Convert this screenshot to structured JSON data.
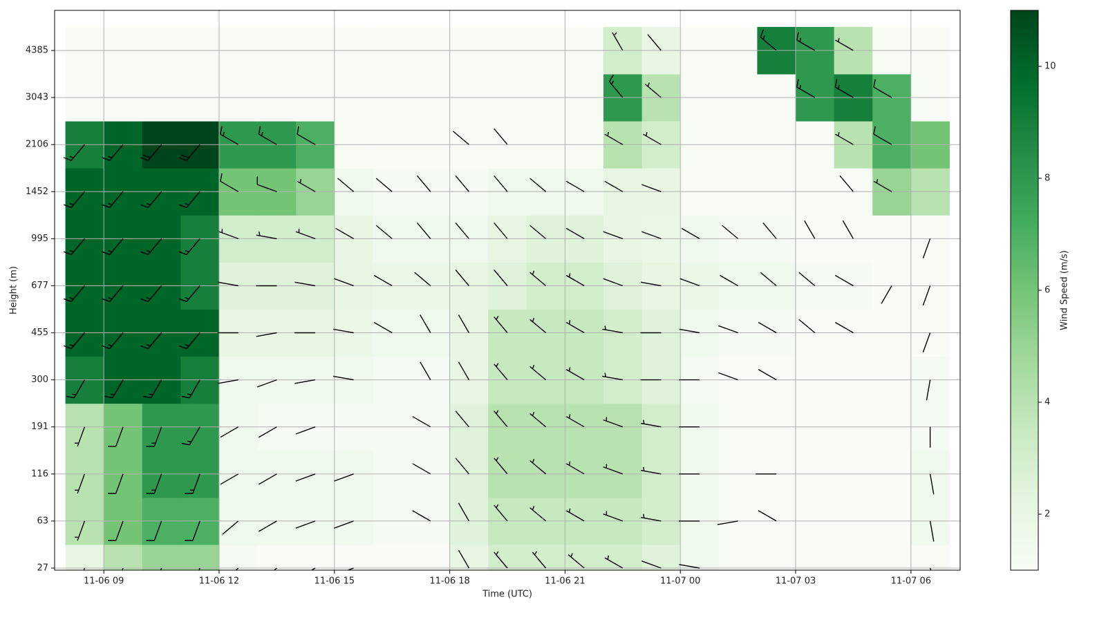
{
  "chart_data": {
    "type": "heatmap_barbs",
    "xlabel": "Time (UTC)",
    "ylabel": "Height (m)",
    "colorbar_label": "Wind Speed (m/s)",
    "x": [
      8,
      9,
      10,
      11,
      12,
      13,
      14,
      15,
      16,
      17,
      18,
      19,
      20,
      21,
      22,
      23,
      24,
      25,
      26,
      27,
      28,
      29,
      30
    ],
    "xlim": [
      7.72,
      31.28
    ],
    "xticks": [
      {
        "value": 9,
        "label": "11-06 09"
      },
      {
        "value": 12,
        "label": "11-06 12"
      },
      {
        "value": 15,
        "label": "11-06 15"
      },
      {
        "value": 18,
        "label": "11-06 18"
      },
      {
        "value": 21,
        "label": "11-06 21"
      },
      {
        "value": 24,
        "label": "11-07 00"
      },
      {
        "value": 27,
        "label": "11-07 03"
      },
      {
        "value": 30,
        "label": "11-07 06"
      }
    ],
    "heights": [
      27,
      63,
      116,
      191,
      300,
      455,
      677,
      995,
      1452,
      2106,
      3043,
      4385
    ],
    "grid": true,
    "clim": [
      1,
      11
    ],
    "cticks": [
      2,
      4,
      6,
      8,
      10
    ],
    "cmap_colors": [
      "#f7fcf5",
      "#e5f5e0",
      "#c7e9c0",
      "#a1d99b",
      "#74c476",
      "#41ab5d",
      "#238b45",
      "#006d2c",
      "#00441b"
    ],
    "barb_color": "#000000",
    "values": [
      [
        2,
        4,
        5,
        5,
        1.2,
        1,
        1,
        1,
        1,
        1,
        2,
        3,
        3,
        3,
        3,
        2.5,
        1.5,
        1,
        1,
        1,
        1,
        1,
        1
      ],
      [
        4,
        6,
        7,
        7,
        1.5,
        1.5,
        1.5,
        1.5,
        1.2,
        1.2,
        2.5,
        3.5,
        3.5,
        3.5,
        3.5,
        3,
        1.5,
        1,
        1,
        1,
        1,
        1,
        1.5
      ],
      [
        4,
        6,
        8,
        8,
        1.5,
        1.5,
        1.5,
        1.5,
        1.2,
        1.2,
        2.5,
        4,
        4,
        4,
        4,
        3,
        1.5,
        1,
        1,
        1,
        1,
        1,
        1.5
      ],
      [
        4,
        6,
        8,
        8,
        1.5,
        1.2,
        1.2,
        1.2,
        1.2,
        1.2,
        2.5,
        4,
        4,
        4,
        4,
        3,
        1.5,
        1,
        1,
        1,
        1,
        1,
        1.2
      ],
      [
        9,
        10,
        10,
        9,
        1.5,
        1.5,
        1.5,
        1.5,
        1.2,
        1.2,
        2,
        3.5,
        3.5,
        3.5,
        3,
        2.5,
        1.2,
        1,
        1,
        1,
        1,
        1,
        1.2
      ],
      [
        10,
        10,
        10,
        10,
        2,
        2,
        2,
        1.8,
        1.5,
        1.5,
        2,
        3.5,
        3.5,
        3.5,
        3,
        2.5,
        1.5,
        1.2,
        1.2,
        1,
        1,
        1,
        1
      ],
      [
        10,
        10,
        10,
        9,
        2.5,
        2.5,
        2.5,
        2,
        1.8,
        1.8,
        2,
        2.5,
        3,
        3,
        2.5,
        2,
        1.8,
        1.5,
        1.5,
        1.2,
        1.2,
        1,
        1
      ],
      [
        10,
        10,
        10,
        9,
        3,
        3,
        3,
        2,
        1.5,
        1.5,
        1.5,
        2,
        2.5,
        2.5,
        2,
        1.8,
        1.5,
        1.2,
        1.2,
        1,
        1,
        1,
        1
      ],
      [
        10,
        10,
        10,
        10,
        6,
        6,
        5,
        1.5,
        1.2,
        1.2,
        1.2,
        1.5,
        1.5,
        1.5,
        2,
        2,
        1,
        1,
        1,
        1,
        1,
        5,
        4
      ],
      [
        9,
        10,
        11,
        11,
        8,
        8,
        7,
        1,
        1,
        1,
        1,
        1,
        1,
        1,
        4,
        3,
        1,
        1,
        1,
        1,
        4,
        7,
        6
      ],
      [
        1,
        1,
        1,
        1,
        1,
        1,
        1,
        1,
        1,
        1,
        1,
        1,
        1,
        1,
        8,
        4,
        1,
        1,
        1,
        8,
        9,
        7,
        1
      ],
      [
        1,
        1,
        1,
        1,
        1,
        1,
        1,
        1,
        1,
        1,
        1,
        1,
        1,
        1,
        3,
        2,
        1,
        1,
        9,
        8,
        4,
        1,
        1
      ]
    ],
    "directions": [
      [
        200,
        200,
        200,
        200,
        230,
        230,
        240,
        250,
        null,
        null,
        330,
        320,
        320,
        310,
        300,
        290,
        280,
        null,
        null,
        null,
        null,
        null,
        160
      ],
      [
        200,
        200,
        200,
        200,
        230,
        240,
        250,
        250,
        null,
        300,
        330,
        320,
        310,
        300,
        290,
        280,
        270,
        260,
        300,
        null,
        null,
        null,
        170
      ],
      [
        200,
        200,
        200,
        200,
        240,
        240,
        250,
        250,
        null,
        300,
        320,
        320,
        310,
        300,
        290,
        280,
        270,
        null,
        270,
        null,
        null,
        null,
        170
      ],
      [
        200,
        200,
        200,
        210,
        240,
        240,
        250,
        null,
        null,
        300,
        320,
        320,
        310,
        300,
        290,
        280,
        270,
        null,
        null,
        null,
        null,
        null,
        180
      ],
      [
        210,
        210,
        210,
        210,
        260,
        250,
        260,
        280,
        null,
        330,
        330,
        320,
        310,
        300,
        280,
        270,
        270,
        290,
        300,
        null,
        null,
        null,
        190
      ],
      [
        220,
        220,
        220,
        220,
        270,
        260,
        270,
        280,
        300,
        330,
        330,
        320,
        310,
        300,
        280,
        270,
        280,
        290,
        300,
        310,
        300,
        null,
        200
      ],
      [
        220,
        220,
        220,
        220,
        280,
        270,
        280,
        290,
        300,
        310,
        320,
        320,
        310,
        300,
        290,
        280,
        290,
        300,
        310,
        310,
        300,
        210,
        200
      ],
      [
        220,
        220,
        220,
        220,
        290,
        280,
        290,
        300,
        310,
        320,
        320,
        320,
        310,
        300,
        290,
        290,
        300,
        310,
        320,
        330,
        330,
        null,
        200
      ],
      [
        220,
        220,
        220,
        220,
        300,
        290,
        300,
        310,
        310,
        320,
        320,
        320,
        310,
        300,
        300,
        290,
        null,
        null,
        null,
        null,
        320,
        300,
        null
      ],
      [
        220,
        220,
        220,
        220,
        300,
        300,
        300,
        null,
        null,
        null,
        310,
        320,
        null,
        null,
        300,
        300,
        null,
        null,
        null,
        null,
        300,
        300,
        null
      ],
      [
        null,
        null,
        null,
        null,
        null,
        null,
        null,
        null,
        null,
        null,
        null,
        null,
        null,
        null,
        320,
        310,
        null,
        null,
        null,
        300,
        300,
        300,
        null
      ],
      [
        null,
        null,
        null,
        null,
        null,
        null,
        null,
        null,
        null,
        null,
        null,
        null,
        null,
        null,
        330,
        320,
        null,
        null,
        310,
        300,
        300,
        null,
        null
      ]
    ]
  }
}
